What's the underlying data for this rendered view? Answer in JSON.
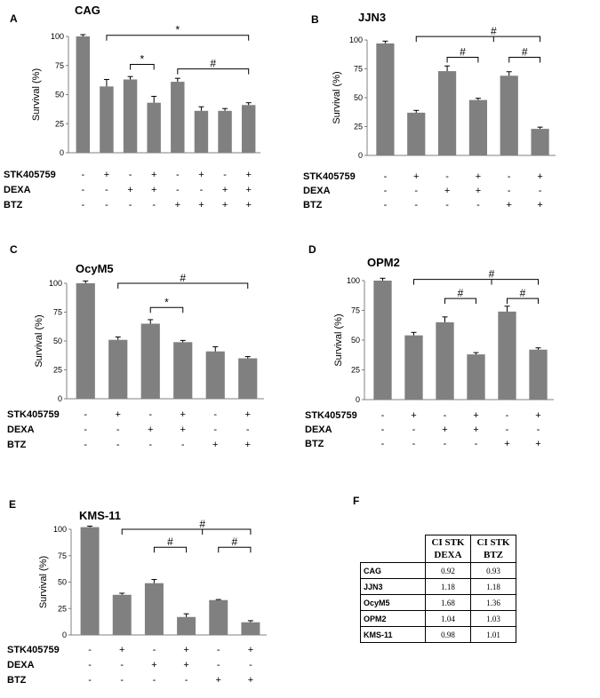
{
  "colors": {
    "bar": "#808080",
    "axis": "#808080",
    "text": "#000000"
  },
  "row_labels": {
    "stk": "STK405759",
    "dexa": "DEXA",
    "btz": "BTZ"
  },
  "chart_data": [
    {
      "type": "bar",
      "panel": "A",
      "title": "CAG",
      "ylabel": "Survival (%)",
      "ylim": [
        0,
        100
      ],
      "yticks": [
        0,
        25,
        50,
        75,
        100
      ],
      "values": [
        100,
        57,
        63,
        43,
        61,
        36,
        36,
        41
      ],
      "errors": [
        1.5,
        6,
        2.5,
        5.5,
        3,
        3.5,
        2,
        2
      ],
      "treatments": {
        "stk": [
          "-",
          "+",
          "-",
          "+",
          "-",
          "+",
          "-",
          "+"
        ],
        "dexa": [
          "-",
          "-",
          "+",
          "+",
          "-",
          "-",
          "+",
          "+"
        ],
        "btz": [
          "-",
          "-",
          "-",
          "-",
          "+",
          "+",
          "+",
          "+"
        ]
      },
      "brackets": [
        {
          "from": 1,
          "to": 7,
          "level": 101,
          "mark": "*",
          "stem": "single"
        },
        {
          "from": 2,
          "to": 3,
          "level": 76,
          "mark": "*",
          "stem": "single"
        },
        {
          "from": 4,
          "to": 7,
          "level": 72,
          "mark": "#",
          "stem": "single"
        }
      ]
    },
    {
      "type": "bar",
      "panel": "B",
      "title": "JJN3",
      "ylabel": "Survival (%)",
      "ylim": [
        0,
        100
      ],
      "yticks": [
        0,
        25,
        50,
        75,
        100
      ],
      "values": [
        97,
        37,
        73,
        48,
        69,
        23
      ],
      "errors": [
        2,
        2,
        4.5,
        1.5,
        3.5,
        1.5
      ],
      "treatments": {
        "stk": [
          "-",
          "+",
          "-",
          "+",
          "-",
          "+"
        ],
        "dexa": [
          "-",
          "-",
          "+",
          "+",
          "-",
          "-"
        ],
        "btz": [
          "-",
          "-",
          "-",
          "-",
          "+",
          "+"
        ]
      },
      "brackets": [
        {
          "from": 1,
          "to": 5,
          "level": 103,
          "mark": "#",
          "stem": "split",
          "split_from": 3,
          "split_to": 4
        },
        {
          "from": 2,
          "to": 3,
          "level": 85,
          "mark": "#",
          "stem": "single"
        },
        {
          "from": 4,
          "to": 5,
          "level": 85,
          "mark": "#",
          "stem": "single"
        }
      ]
    },
    {
      "type": "bar",
      "panel": "C",
      "title": "OcyM5",
      "ylabel": "Survival (%)",
      "ylim": [
        0,
        100
      ],
      "yticks": [
        0,
        25,
        50,
        75,
        100
      ],
      "values": [
        100,
        51,
        65,
        49,
        41,
        35
      ],
      "errors": [
        2,
        2.5,
        3.5,
        1.5,
        4,
        1.5
      ],
      "treatments": {
        "stk": [
          "-",
          "+",
          "-",
          "+",
          "-",
          "+"
        ],
        "dexa": [
          "-",
          "-",
          "+",
          "+",
          "-",
          "-"
        ],
        "btz": [
          "-",
          "-",
          "-",
          "-",
          "+",
          "+"
        ]
      },
      "brackets": [
        {
          "from": 1,
          "to": 5,
          "level": 100,
          "mark": "#",
          "stem": "single"
        },
        {
          "from": 2,
          "to": 3,
          "level": 79,
          "mark": "*",
          "stem": "single"
        }
      ]
    },
    {
      "type": "bar",
      "panel": "D",
      "title": "OPM2",
      "ylabel": "Survival (%)",
      "ylim": [
        0,
        100
      ],
      "yticks": [
        0,
        25,
        50,
        75,
        100
      ],
      "values": [
        100,
        54,
        65,
        38,
        74,
        42
      ],
      "errors": [
        2,
        2.5,
        4.5,
        1.5,
        4.5,
        1.5
      ],
      "treatments": {
        "stk": [
          "-",
          "+",
          "-",
          "+",
          "-",
          "+"
        ],
        "dexa": [
          "-",
          "-",
          "+",
          "+",
          "-",
          "-"
        ],
        "btz": [
          "-",
          "-",
          "-",
          "-",
          "+",
          "+"
        ]
      },
      "brackets": [
        {
          "from": 1,
          "to": 5,
          "level": 101,
          "mark": "#",
          "stem": "split",
          "split_from": 3,
          "split_to": 4
        },
        {
          "from": 2,
          "to": 3,
          "level": 85,
          "mark": "#",
          "stem": "single"
        },
        {
          "from": 4,
          "to": 5,
          "level": 85,
          "mark": "#",
          "stem": "single"
        }
      ]
    },
    {
      "type": "bar",
      "panel": "E",
      "title": "KMS-11",
      "ylabel": "Survival (%)",
      "ylim": [
        0,
        100
      ],
      "yticks": [
        0,
        25,
        50,
        75,
        100
      ],
      "values": [
        102,
        38,
        49,
        17,
        33,
        12
      ],
      "errors": [
        1,
        1.5,
        3.5,
        3,
        0.5,
        1.5
      ],
      "treatments": {
        "stk": [
          "-",
          "+",
          "-",
          "+",
          "-",
          "+"
        ],
        "dexa": [
          "-",
          "-",
          "+",
          "+",
          "-",
          "-"
        ],
        "btz": [
          "-",
          "-",
          "-",
          "-",
          "+",
          "+"
        ]
      },
      "brackets": [
        {
          "from": 1,
          "to": 5,
          "level": 100,
          "mark": "#",
          "stem": "split",
          "split_from": 3,
          "split_to": 4
        },
        {
          "from": 2,
          "to": 3,
          "level": 83,
          "mark": "#",
          "stem": "single"
        },
        {
          "from": 4,
          "to": 5,
          "level": 83,
          "mark": "#",
          "stem": "single"
        }
      ]
    }
  ],
  "table": {
    "label": "F",
    "headers": [
      [
        "CI  STK",
        "DEXA"
      ],
      [
        "CI  STK",
        "BTZ"
      ]
    ],
    "rows": [
      {
        "cell": "CAG",
        "dexa": "0.92",
        "btz": "0.93"
      },
      {
        "cell": "JJN3",
        "dexa": "1.18",
        "btz": "1.18"
      },
      {
        "cell": "OcyM5",
        "dexa": "1.68",
        "btz": "1.36"
      },
      {
        "cell": "OPM2",
        "dexa": "1.04",
        "btz": "1.03"
      },
      {
        "cell": "KMS-11",
        "dexa": "0.98",
        "btz": "1.01"
      }
    ]
  }
}
